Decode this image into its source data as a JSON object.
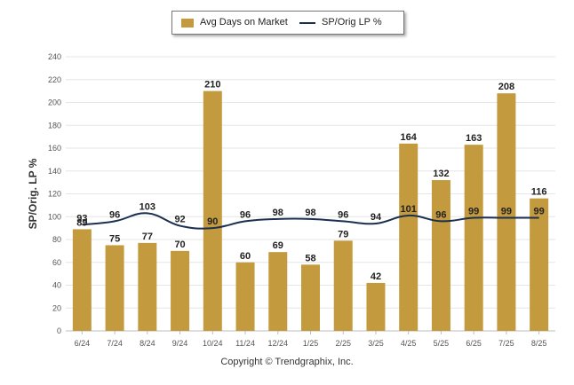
{
  "legend": {
    "bar_label": "Avg Days on Market",
    "line_label": "SP/Orig LP %"
  },
  "copyright": "Copyright © Trendgraphix, Inc.",
  "colors": {
    "bar": "#c49a3e",
    "line": "#1b2f4f",
    "grid": "#e6e6e6",
    "axis_text": "#555555"
  },
  "chart_data": {
    "type": "bar",
    "title": "",
    "xlabel": "",
    "ylabel": "SP/Orig. LP %",
    "ylim": [
      0,
      240
    ],
    "yticks": [
      0,
      20,
      40,
      60,
      80,
      100,
      120,
      140,
      160,
      180,
      200,
      220,
      240
    ],
    "grid": true,
    "legend_position": "top-center",
    "categories": [
      "6/24",
      "7/24",
      "8/24",
      "9/24",
      "10/24",
      "11/24",
      "12/24",
      "1/25",
      "2/25",
      "3/25",
      "4/25",
      "5/25",
      "6/25",
      "7/25",
      "8/25"
    ],
    "series": [
      {
        "name": "Avg Days on Market",
        "type": "bar",
        "values": [
          89,
          75,
          77,
          70,
          210,
          60,
          69,
          58,
          79,
          42,
          164,
          132,
          163,
          208,
          116
        ]
      },
      {
        "name": "SP/Orig LP %",
        "type": "line",
        "values": [
          93,
          96,
          103,
          92,
          90,
          96,
          98,
          98,
          96,
          94,
          101,
          96,
          99,
          99,
          99
        ]
      }
    ]
  }
}
